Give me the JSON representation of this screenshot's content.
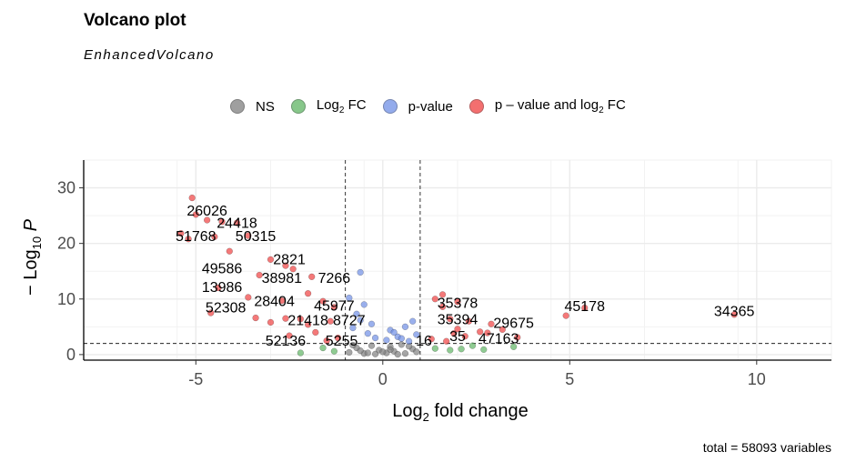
{
  "title": "Volcano plot",
  "subtitle": "EnhancedVolcano",
  "caption": "total = 58093 variables",
  "legend": [
    {
      "label": "NS",
      "color": "#808080"
    },
    {
      "label": "Log",
      "sub": "2",
      "tail": " FC",
      "color": "#5fb564"
    },
    {
      "label": "p-value",
      "color": "#6f8fe6"
    },
    {
      "label": "p – value and log",
      "sub": "2",
      "tail": " FC",
      "color": "#f04040"
    }
  ],
  "chart_data": {
    "type": "scatter",
    "title": "Volcano plot",
    "subtitle": "EnhancedVolcano",
    "xlabel": "Log2 fold change",
    "ylabel": "-Log10 P",
    "xlim": [
      -8,
      12
    ],
    "ylim": [
      -1,
      35
    ],
    "xticks": [
      -5,
      0,
      5,
      10
    ],
    "yticks": [
      0,
      10,
      20,
      30
    ],
    "grid": true,
    "legend_position": "top",
    "fc_cutoff": 1,
    "p_cutoff_log10": 2,
    "series": [
      {
        "name": "NS",
        "color": "#808080",
        "points": [
          [
            -0.9,
            0.4
          ],
          [
            -0.5,
            0.2
          ],
          [
            -0.2,
            0.1
          ],
          [
            0.1,
            0.3
          ],
          [
            0.3,
            0.6
          ],
          [
            0.6,
            0.2
          ],
          [
            0.8,
            1.0
          ],
          [
            -0.7,
            1.2
          ],
          [
            -0.3,
            1.6
          ],
          [
            0.2,
            1.4
          ],
          [
            0.5,
            1.8
          ],
          [
            0.9,
            0.5
          ],
          [
            -0.1,
            0.8
          ],
          [
            0.4,
            0.05
          ],
          [
            -0.6,
            0.7
          ],
          [
            0.7,
            1.5
          ],
          [
            -0.4,
            0.3
          ],
          [
            0,
            0.5
          ],
          [
            0.2,
            0.9
          ],
          [
            -0.8,
            1.7
          ]
        ]
      },
      {
        "name": "Log2 FC",
        "color": "#5fb564",
        "points": [
          [
            -2.2,
            0.3
          ],
          [
            -1.6,
            1.2
          ],
          [
            -1.3,
            0.6
          ],
          [
            1.4,
            1.1
          ],
          [
            1.8,
            0.8
          ],
          [
            2.1,
            1.0
          ],
          [
            2.7,
            0.9
          ],
          [
            3.5,
            1.4
          ],
          [
            2.4,
            1.6
          ]
        ]
      },
      {
        "name": "p-value",
        "color": "#6f8fe6",
        "points": [
          [
            -0.6,
            14.8
          ],
          [
            -0.9,
            10.2
          ],
          [
            -0.5,
            9.0
          ],
          [
            -0.7,
            7.3
          ],
          [
            -0.3,
            5.5
          ],
          [
            0.2,
            4.4
          ],
          [
            0.6,
            5.0
          ],
          [
            0.4,
            3.2
          ],
          [
            -0.4,
            3.8
          ],
          [
            0.8,
            6.0
          ],
          [
            -0.8,
            4.8
          ],
          [
            0.1,
            2.6
          ],
          [
            0.5,
            2.9
          ],
          [
            -0.2,
            3.0
          ],
          [
            0.9,
            3.6
          ],
          [
            0.3,
            4.0
          ],
          [
            -0.6,
            6.2
          ],
          [
            0.7,
            2.4
          ]
        ]
      },
      {
        "name": "p – value and log2 FC",
        "color": "#f04040",
        "points": [
          [
            -5.1,
            28.2
          ],
          [
            -5.0,
            25.2
          ],
          [
            -4.7,
            24.2
          ],
          [
            -4.3,
            23.9
          ],
          [
            -3.9,
            23.7
          ],
          [
            -5.4,
            21.8
          ],
          [
            -4.5,
            21.2
          ],
          [
            -3.6,
            21.4
          ],
          [
            -5.2,
            20.8
          ],
          [
            -4.1,
            18.6
          ],
          [
            -3.0,
            17.1
          ],
          [
            -2.6,
            16.0
          ],
          [
            -2.4,
            15.4
          ],
          [
            -3.3,
            14.3
          ],
          [
            -1.9,
            14.0
          ],
          [
            -4.4,
            12.0
          ],
          [
            -2.0,
            11.0
          ],
          [
            -3.6,
            10.3
          ],
          [
            -2.7,
            9.7
          ],
          [
            -1.6,
            9.6
          ],
          [
            -1.3,
            8.5
          ],
          [
            -4.6,
            7.5
          ],
          [
            -3.4,
            6.6
          ],
          [
            -2.6,
            6.5
          ],
          [
            -2.2,
            6.4
          ],
          [
            -1.4,
            6.0
          ],
          [
            -3.0,
            5.8
          ],
          [
            -2.0,
            5.4
          ],
          [
            -1.8,
            4.0
          ],
          [
            -1.2,
            3.0
          ],
          [
            -2.5,
            3.4
          ],
          [
            -1.5,
            2.5
          ],
          [
            1.6,
            10.8
          ],
          [
            1.4,
            10.0
          ],
          [
            2.0,
            9.5
          ],
          [
            1.6,
            8.6
          ],
          [
            1.8,
            6.4
          ],
          [
            2.3,
            6.0
          ],
          [
            2.9,
            5.5
          ],
          [
            3.2,
            4.5
          ],
          [
            2.6,
            4.1
          ],
          [
            1.9,
            3.8
          ],
          [
            2.2,
            3.3
          ],
          [
            2.0,
            4.6
          ],
          [
            1.3,
            2.8
          ],
          [
            1.7,
            2.4
          ],
          [
            4.9,
            7.0
          ],
          [
            5.4,
            8.4
          ],
          [
            9.4,
            7.2
          ],
          [
            3.6,
            3.1
          ],
          [
            2.8,
            3.9
          ]
        ]
      }
    ],
    "annotations": [
      {
        "text": "26026",
        "x": -4.7,
        "y": 25.0
      },
      {
        "text": "24418",
        "x": -3.9,
        "y": 22.8
      },
      {
        "text": "51768",
        "x": -5.0,
        "y": 20.4
      },
      {
        "text": "50315",
        "x": -3.4,
        "y": 20.4
      },
      {
        "text": "2821",
        "x": -2.5,
        "y": 16.3
      },
      {
        "text": "49586",
        "x": -4.3,
        "y": 14.6
      },
      {
        "text": "38981",
        "x": -2.7,
        "y": 12.9
      },
      {
        "text": "7266",
        "x": -1.3,
        "y": 12.9
      },
      {
        "text": "13986",
        "x": -4.3,
        "y": 11.3
      },
      {
        "text": "28404",
        "x": -2.9,
        "y": 8.7
      },
      {
        "text": "45977",
        "x": -1.3,
        "y": 7.9
      },
      {
        "text": "52308",
        "x": -4.2,
        "y": 7.6
      },
      {
        "text": "21418",
        "x": -2.0,
        "y": 5.3
      },
      {
        "text": "8727",
        "x": -0.9,
        "y": 5.3
      },
      {
        "text": "52136",
        "x": -2.6,
        "y": 1.6
      },
      {
        "text": "5255",
        "x": -1.1,
        "y": 1.6
      },
      {
        "text": "16",
        "x": 1.1,
        "y": 1.6
      },
      {
        "text": "35378",
        "x": 2.0,
        "y": 8.4
      },
      {
        "text": "35394",
        "x": 2.0,
        "y": 5.5
      },
      {
        "text": "35",
        "x": 2.0,
        "y": 2.4
      },
      {
        "text": "47163",
        "x": 3.1,
        "y": 2.0
      },
      {
        "text": "29675",
        "x": 3.5,
        "y": 4.8
      },
      {
        "text": "45178",
        "x": 5.4,
        "y": 7.8
      },
      {
        "text": "34365",
        "x": 9.4,
        "y": 6.9
      }
    ]
  }
}
